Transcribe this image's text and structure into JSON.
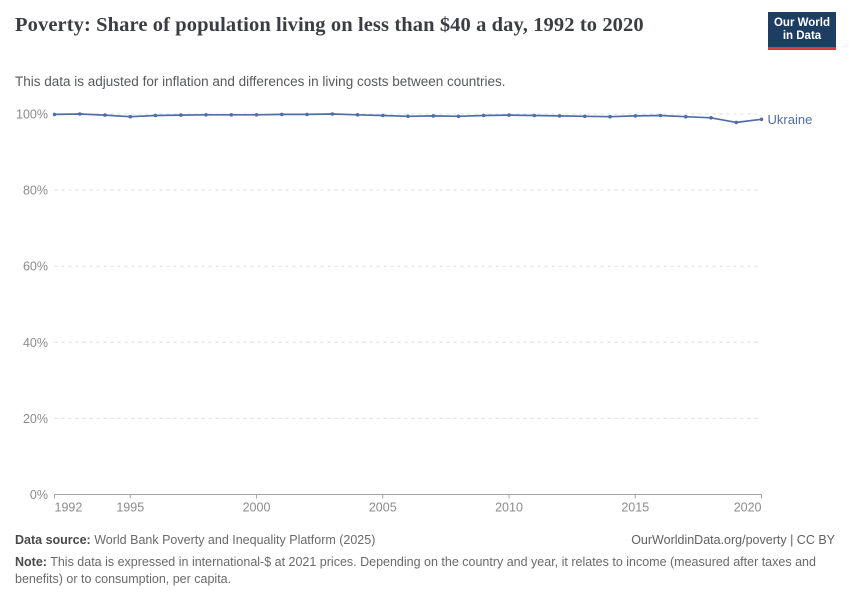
{
  "header": {
    "title": "Poverty: Share of population living on less than $40 a day, 1992 to 2020",
    "subtitle": "This data is adjusted for inflation and differences in living costs between countries.",
    "logo": {
      "line1": "Our World",
      "line2": "in Data"
    }
  },
  "chart_data": {
    "type": "line",
    "title": "Poverty: Share of population living on less than $40 a day, 1992 to 2020",
    "x": [
      1992,
      1993,
      1994,
      1995,
      1996,
      1997,
      1998,
      1999,
      2000,
      2001,
      2002,
      2003,
      2004,
      2005,
      2006,
      2007,
      2008,
      2009,
      2010,
      2011,
      2012,
      2013,
      2014,
      2015,
      2016,
      2017,
      2018,
      2019,
      2020
    ],
    "series": [
      {
        "name": "Ukraine",
        "values": [
          99.9,
          100,
          99.7,
          99.3,
          99.6,
          99.7,
          99.8,
          99.8,
          99.8,
          99.9,
          99.9,
          100,
          99.8,
          99.6,
          99.4,
          99.5,
          99.4,
          99.6,
          99.7,
          99.6,
          99.5,
          99.4,
          99.3,
          99.5,
          99.6,
          99.3,
          99.0,
          97.8,
          98.6
        ]
      }
    ],
    "xlabel": "",
    "ylabel": "",
    "xlim": [
      1992,
      2020
    ],
    "ylim": [
      0,
      100
    ],
    "x_ticks": [
      1992,
      1995,
      2000,
      2005,
      2010,
      2015,
      2020
    ],
    "x_tick_labels": [
      "1992",
      "1995",
      "2000",
      "2005",
      "2010",
      "2015",
      "2020"
    ],
    "y_tick_values": [
      0,
      20,
      40,
      60,
      80,
      100
    ],
    "y_tick_labels": [
      "0%",
      "20%",
      "40%",
      "60%",
      "80%",
      "100%"
    ],
    "grid": "horizontal-dashed",
    "legend_position": "end-of-line"
  },
  "colors": {
    "line": "#4f6ea8",
    "grid": "#dcdcdc",
    "axis": "#a5a5a5",
    "axis_text": "#8b8b8b",
    "logo_bg": "#1d3d63",
    "logo_accent": "#d93a3e"
  },
  "footer": {
    "datasource_label": "Data source:",
    "datasource": "World Bank Poverty and Inequality Platform (2025)",
    "rights": "OurWorldinData.org/poverty | CC BY",
    "note_label": "Note:",
    "note": "This data is expressed in international-$ at 2021 prices. Depending on the country and year, it relates to income (measured after taxes and benefits) or to consumption, per capita."
  }
}
